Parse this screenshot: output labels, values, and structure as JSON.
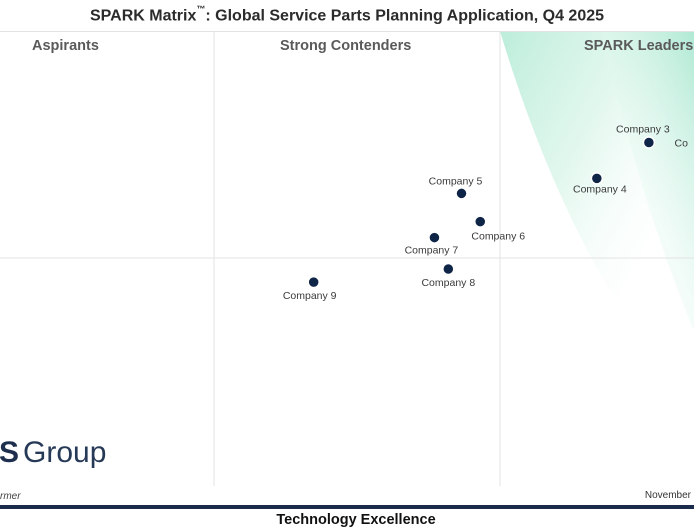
{
  "header": {
    "title_main": "SPARK Matrix",
    "title_tm": "™",
    "title_rest": ": Global Service Parts Planning Application, Q4 2025"
  },
  "quadrants": {
    "aspirants": "Aspirants",
    "strong_contenders": "Strong Contenders",
    "leaders": "SPARK Leaders"
  },
  "logo": {
    "letter": "S",
    "word": "Group"
  },
  "footer": {
    "left_text": "rmer",
    "right_text": "November"
  },
  "colors": {
    "dot": "#0f2547",
    "leader_gradient": "#b9ecd8",
    "bar": "#1b2b4b"
  },
  "chart_data": {
    "type": "scatter",
    "xlabel": "Technology Excellence",
    "ylabel": "",
    "xlim": [
      0,
      100
    ],
    "ylim": [
      0,
      100
    ],
    "grid": true,
    "points": [
      {
        "label": "Company 3",
        "x": 93.5,
        "y": 75.5
      },
      {
        "label": "Co",
        "x": 99.5,
        "y": 75.5
      },
      {
        "label": "Company 4",
        "x": 86.0,
        "y": 67.6
      },
      {
        "label": "Company 5",
        "x": 66.5,
        "y": 64.3
      },
      {
        "label": "Company 6",
        "x": 69.2,
        "y": 58.1
      },
      {
        "label": "Company 7",
        "x": 62.6,
        "y": 54.6
      },
      {
        "label": "Company 8",
        "x": 64.6,
        "y": 47.7
      },
      {
        "label": "Company 9",
        "x": 45.2,
        "y": 44.8
      }
    ]
  }
}
